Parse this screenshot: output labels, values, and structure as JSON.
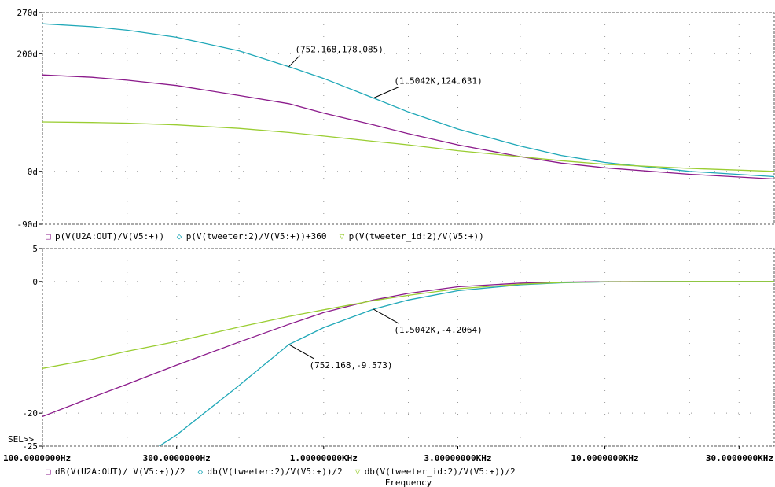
{
  "chart_data": [
    {
      "type": "line",
      "x_scale": "log",
      "xlim": [
        100,
        40000
      ],
      "ylim": [
        -90,
        270
      ],
      "yticks": [
        {
          "value": 270,
          "label": "270d"
        },
        {
          "value": 200,
          "label": "200d"
        },
        {
          "value": 0,
          "label": "0d"
        },
        {
          "value": -90,
          "label": "-90d"
        }
      ],
      "grid": "dotted",
      "series": [
        {
          "name": "p(V(U2A:OUT)/V(V5:+))",
          "color": "#8b1a8b",
          "marker": "□",
          "points": [
            [
              100,
              164
            ],
            [
              150,
              160
            ],
            [
              200,
              155
            ],
            [
              300,
              146
            ],
            [
              500,
              129
            ],
            [
              752,
              115
            ],
            [
              1000,
              99
            ],
            [
              1504,
              79
            ],
            [
              2000,
              64
            ],
            [
              3000,
              45
            ],
            [
              5000,
              25
            ],
            [
              7000,
              14
            ],
            [
              10000,
              6
            ],
            [
              20000,
              -5
            ],
            [
              40000,
              -13
            ]
          ]
        },
        {
          "name": "p(V(tweeter:2)/V(V5:+))+360",
          "color": "#20a8b8",
          "marker": "◇",
          "points": [
            [
              100,
              251
            ],
            [
              150,
              246
            ],
            [
              200,
              240
            ],
            [
              300,
              228
            ],
            [
              500,
              205
            ],
            [
              752,
              178.085
            ],
            [
              1000,
              158
            ],
            [
              1504,
              124.631
            ],
            [
              2000,
              101
            ],
            [
              3000,
              72
            ],
            [
              5000,
              43
            ],
            [
              7000,
              27
            ],
            [
              10000,
              15
            ],
            [
              20000,
              0
            ],
            [
              40000,
              -9
            ]
          ]
        },
        {
          "name": "p(V(tweeter_id:2)/V(V5:+))",
          "color": "#9acd32",
          "marker": "▽",
          "points": [
            [
              100,
              84
            ],
            [
              150,
              83
            ],
            [
              200,
              82
            ],
            [
              300,
              79
            ],
            [
              500,
              73
            ],
            [
              752,
              66
            ],
            [
              1000,
              60
            ],
            [
              1504,
              51
            ],
            [
              2000,
              45
            ],
            [
              3000,
              35
            ],
            [
              5000,
              25
            ],
            [
              7000,
              18
            ],
            [
              10000,
              12
            ],
            [
              20000,
              5
            ],
            [
              40000,
              0
            ]
          ]
        }
      ],
      "annotations": [
        {
          "label": "(752.168,178.085)",
          "x": 752.168,
          "y": 178.085,
          "series": 1
        },
        {
          "label": "(1.5042K,124.631)",
          "x": 1504.2,
          "y": 124.631,
          "series": 1
        }
      ]
    },
    {
      "type": "line",
      "x_scale": "log",
      "xlim": [
        100,
        40000
      ],
      "ylim": [
        -25,
        5
      ],
      "yticks": [
        {
          "value": 5,
          "label": "5"
        },
        {
          "value": 0,
          "label": "0"
        },
        {
          "value": -20,
          "label": "-20"
        },
        {
          "value": -25,
          "label": "-25"
        }
      ],
      "xticks": [
        {
          "value": 100,
          "label": "100.0000000Hz"
        },
        {
          "value": 300,
          "label": "300.0000000Hz"
        },
        {
          "value": 1000,
          "label": "1.00000000KHz"
        },
        {
          "value": 3000,
          "label": "3.00000000KHz"
        },
        {
          "value": 10000,
          "label": "10.0000000KHz"
        },
        {
          "value": 30000,
          "label": "30.0000000KHz"
        }
      ],
      "xlabel": "Frequency",
      "selector": "SEL>>",
      "grid": "dotted",
      "series": [
        {
          "name": "dB(V(U2A:OUT)/ V(V5:+))/2",
          "color": "#8b1a8b",
          "marker": "□",
          "points": [
            [
              100,
              -20.5
            ],
            [
              150,
              -17.6
            ],
            [
              200,
              -15.6
            ],
            [
              300,
              -12.7
            ],
            [
              500,
              -9.2
            ],
            [
              752,
              -6.5
            ],
            [
              1000,
              -4.7
            ],
            [
              1504,
              -2.8
            ],
            [
              2000,
              -1.8
            ],
            [
              3000,
              -0.8
            ],
            [
              5000,
              -0.25
            ],
            [
              7000,
              -0.1
            ],
            [
              10000,
              -0.02
            ],
            [
              20000,
              0
            ],
            [
              40000,
              0
            ]
          ]
        },
        {
          "name": "db(V(tweeter:2)/V(V5:+))/2",
          "color": "#20a8b8",
          "marker": "◇",
          "points": [
            [
              260,
              -25
            ],
            [
              300,
              -23.3
            ],
            [
              500,
              -15.8
            ],
            [
              752,
              -9.573
            ],
            [
              1000,
              -7.0
            ],
            [
              1504,
              -4.2064
            ],
            [
              2000,
              -2.8
            ],
            [
              3000,
              -1.4
            ],
            [
              5000,
              -0.5
            ],
            [
              7000,
              -0.2
            ],
            [
              10000,
              -0.05
            ],
            [
              20000,
              0
            ],
            [
              40000,
              0
            ]
          ]
        },
        {
          "name": "db(V(tweeter_id:2)/V(V5:+))/2",
          "color": "#9acd32",
          "marker": "▽",
          "points": [
            [
              100,
              -13.2
            ],
            [
              150,
              -11.8
            ],
            [
              200,
              -10.6
            ],
            [
              300,
              -9.1
            ],
            [
              500,
              -6.9
            ],
            [
              752,
              -5.3
            ],
            [
              1000,
              -4.3
            ],
            [
              1504,
              -2.9
            ],
            [
              2000,
              -2.1
            ],
            [
              3000,
              -1.1
            ],
            [
              5000,
              -0.4
            ],
            [
              7000,
              -0.15
            ],
            [
              10000,
              -0.05
            ],
            [
              20000,
              0
            ],
            [
              40000,
              0
            ]
          ]
        }
      ],
      "annotations": [
        {
          "label": "(1.5042K,-4.2064)",
          "x": 1504.2,
          "y": -4.2064,
          "series": 1
        },
        {
          "label": "(752.168,-9.573)",
          "x": 752.168,
          "y": -9.573,
          "series": 1
        }
      ]
    }
  ]
}
